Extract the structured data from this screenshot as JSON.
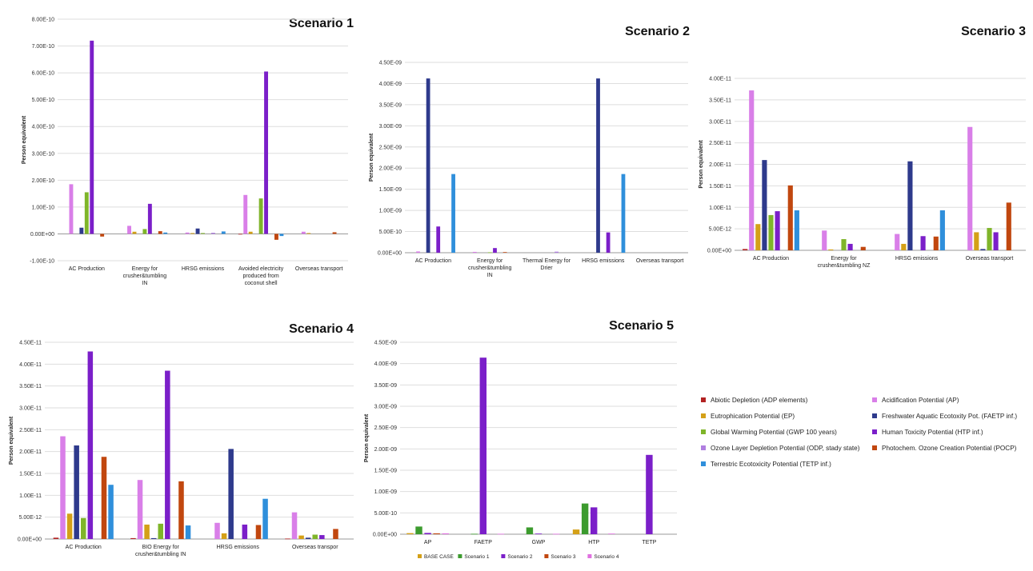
{
  "series_defs": [
    {
      "key": "adp",
      "name": "Abiotic Depletion (ADP elements)",
      "color": "#B22222"
    },
    {
      "key": "ap",
      "name": "Acidification Potential (AP)",
      "color": "#D97FE8"
    },
    {
      "key": "ep",
      "name": "Eutrophication Potential (EP)",
      "color": "#D4A017"
    },
    {
      "key": "faetp",
      "name": "Freshwater Aquatic Ecotoxity Pot. (FAETP inf.)",
      "color": "#2E3A8C"
    },
    {
      "key": "gwp",
      "name": "Global Warming Potential (GWP 100 years)",
      "color": "#7FB52A"
    },
    {
      "key": "htp",
      "name": "Human Toxicity Potential (HTP inf.)",
      "color": "#7B1FC9"
    },
    {
      "key": "odp",
      "name": "Ozone Layer Depletion Potential (ODP, stady state)",
      "color": "#B07FE0"
    },
    {
      "key": "pocp",
      "name": "Photochem. Ozone Creation Potential (POCP)",
      "color": "#C1470F"
    },
    {
      "key": "tetp",
      "name": "Terrestric Ecotoxicity Potential (TETP inf.)",
      "color": "#2F8FDB"
    }
  ],
  "chart_data": [
    {
      "type": "bar",
      "title": "Scenario 1",
      "ylabel": "Person equivalent",
      "ylim": [
        -1e-10,
        8e-10
      ],
      "yticks": [
        -1e-10,
        0,
        1e-10,
        2e-10,
        3e-10,
        4e-10,
        5e-10,
        6e-10,
        7e-10,
        8e-10
      ],
      "ytick_labels": [
        "-1.00E-10",
        "0.00E+00",
        "1.00E-10",
        "2.00E-10",
        "3.00E-10",
        "4.00E-10",
        "5.00E-10",
        "6.00E-10",
        "7.00E-10",
        "8.00E-10"
      ],
      "categories": [
        "AC Production",
        "Energy for crusher&tumbling IN",
        "HRSG emissions",
        "Avoided electricity produced from coconut shell",
        "Overseas transport"
      ],
      "category_lines": [
        [
          "AC Production"
        ],
        [
          "Energy for",
          "crusher&tumbling",
          "IN"
        ],
        [
          "HRSG emissions"
        ],
        [
          "Avoided electricity",
          "produced from",
          "coconut shell"
        ],
        [
          "Overseas transport"
        ]
      ],
      "series_keys": [
        "adp",
        "ap",
        "ep",
        "faetp",
        "gwp",
        "htp",
        "odp",
        "pocp",
        "tetp"
      ],
      "series": [
        {
          "key": "adp",
          "values": [
            0,
            0,
            0,
            -1e-12,
            0
          ]
        },
        {
          "key": "ap",
          "values": [
            1.85e-10,
            3e-11,
            5e-12,
            1.45e-10,
            8e-12
          ]
        },
        {
          "key": "ep",
          "values": [
            0,
            8e-12,
            3e-12,
            8e-12,
            3e-12
          ]
        },
        {
          "key": "faetp",
          "values": [
            2.3e-11,
            0,
            2e-11,
            0,
            0
          ]
        },
        {
          "key": "gwp",
          "values": [
            1.55e-10,
            1.8e-11,
            3e-12,
            1.32e-10,
            0
          ]
        },
        {
          "key": "htp",
          "values": [
            7.2e-10,
            1.12e-10,
            0,
            6.05e-10,
            0
          ]
        },
        {
          "key": "odp",
          "values": [
            0,
            0,
            4e-12,
            0,
            0
          ]
        },
        {
          "key": "pocp",
          "values": [
            -1e-11,
            1e-11,
            0,
            -2.2e-11,
            6e-12
          ]
        },
        {
          "key": "tetp",
          "values": [
            0,
            5e-12,
            9e-12,
            -8e-12,
            0
          ]
        }
      ],
      "legend": "none"
    },
    {
      "type": "bar",
      "title": "Scenario 2",
      "ylabel": "Person equivalent",
      "ylim": [
        0,
        4.5e-09
      ],
      "yticks": [
        0,
        5e-10,
        1e-09,
        1.5e-09,
        2e-09,
        2.5e-09,
        3e-09,
        3.5e-09,
        4e-09,
        4.5e-09
      ],
      "ytick_labels": [
        "0.00E+00",
        "5.00E-10",
        "1.00E-09",
        "1.50E-09",
        "2.00E-09",
        "2.50E-09",
        "3.00E-09",
        "3.50E-09",
        "4.00E-09",
        "4.50E-09"
      ],
      "categories": [
        "AC Production",
        "Energy for crusher&tumbling IN",
        "Thermal Energy for Drier",
        "HRSG emissions",
        "Overseas transport"
      ],
      "category_lines": [
        [
          "AC Production"
        ],
        [
          "Energy for",
          "crusher&tumbling",
          "IN"
        ],
        [
          "Thermal Energy for",
          "Drier"
        ],
        [
          "HRSG emissions"
        ],
        [
          "Overseas transport"
        ]
      ],
      "series_keys": [
        "adp",
        "ap",
        "ep",
        "faetp",
        "gwp",
        "htp",
        "odp",
        "pocp",
        "tetp"
      ],
      "series": [
        {
          "key": "adp",
          "values": [
            0,
            0,
            0,
            0,
            0
          ]
        },
        {
          "key": "ap",
          "values": [
            3e-11,
            2e-11,
            0,
            0,
            0
          ]
        },
        {
          "key": "ep",
          "values": [
            0,
            0,
            0,
            0,
            0
          ]
        },
        {
          "key": "faetp",
          "values": [
            4.12e-09,
            0,
            0,
            4.12e-09,
            0
          ]
        },
        {
          "key": "gwp",
          "values": [
            0,
            1e-11,
            0,
            0,
            0
          ]
        },
        {
          "key": "htp",
          "values": [
            6.2e-10,
            1.1e-10,
            0,
            4.8e-10,
            0
          ]
        },
        {
          "key": "odp",
          "values": [
            0,
            0,
            2.5e-11,
            0,
            0
          ]
        },
        {
          "key": "pocp",
          "values": [
            0,
            1.5e-11,
            0,
            0,
            0
          ]
        },
        {
          "key": "tetp",
          "values": [
            1.86e-09,
            0,
            0,
            1.86e-09,
            0
          ]
        }
      ],
      "legend": "none"
    },
    {
      "type": "bar",
      "title": "Scenario 3",
      "ylabel": "Person equivalent",
      "ylim": [
        0,
        4e-11
      ],
      "yticks": [
        0,
        5e-12,
        1e-11,
        1.5e-11,
        2e-11,
        2.5e-11,
        3e-11,
        3.5e-11,
        4e-11
      ],
      "ytick_labels": [
        "0.00E+00",
        "5.00E-12",
        "1.00E-11",
        "1.50E-11",
        "2.00E-11",
        "2.50E-11",
        "3.00E-11",
        "3.50E-11",
        "4.00E-11"
      ],
      "categories": [
        "AC Production",
        "Energy for crusher&tumbling NZ",
        "HRSG emissions",
        "Overseas transport"
      ],
      "category_lines": [
        [
          "AC Production"
        ],
        [
          "Energy for",
          "crusher&tumbling NZ"
        ],
        [
          "HRSG emissions"
        ],
        [
          "Overseas transport"
        ]
      ],
      "series_keys": [
        "adp",
        "ap",
        "ep",
        "faetp",
        "gwp",
        "htp",
        "odp",
        "pocp",
        "tetp"
      ],
      "series": [
        {
          "key": "adp",
          "values": [
            3e-13,
            0,
            0,
            0
          ]
        },
        {
          "key": "ap",
          "values": [
            3.72e-11,
            4.6e-12,
            3.8e-12,
            2.87e-11
          ]
        },
        {
          "key": "ep",
          "values": [
            6.1e-12,
            2e-13,
            1.5e-12,
            4.2e-12
          ]
        },
        {
          "key": "faetp",
          "values": [
            2.1e-11,
            0,
            2.07e-11,
            3e-13
          ]
        },
        {
          "key": "gwp",
          "values": [
            8.2e-12,
            2.6e-12,
            0,
            5.2e-12
          ]
        },
        {
          "key": "htp",
          "values": [
            9.1e-12,
            1.5e-12,
            3.3e-12,
            4.2e-12
          ]
        },
        {
          "key": "odp",
          "values": [
            0,
            0,
            0,
            0
          ]
        },
        {
          "key": "pocp",
          "values": [
            1.51e-11,
            8e-13,
            3.2e-12,
            1.11e-11
          ]
        },
        {
          "key": "tetp",
          "values": [
            9.3e-12,
            0,
            9.3e-12,
            0
          ]
        }
      ],
      "legend": "none"
    },
    {
      "type": "bar",
      "title": "Scenario 4",
      "ylabel": "Person equivalent",
      "ylim": [
        0,
        4.5e-11
      ],
      "yticks": [
        0,
        5e-12,
        1e-11,
        1.5e-11,
        2e-11,
        2.5e-11,
        3e-11,
        3.5e-11,
        4e-11,
        4.5e-11
      ],
      "ytick_labels": [
        "0.00E+00",
        "5.00E-12",
        "1.00E-11",
        "1.50E-11",
        "2.00E-11",
        "2.50E-11",
        "3.00E-11",
        "3.50E-11",
        "4.00E-11",
        "4.50E-11"
      ],
      "categories": [
        "AC Production",
        "BIO Energy for crusher&tumbling IN",
        "HRSG emissions",
        "Overseas transpor"
      ],
      "category_lines": [
        [
          "AC Production"
        ],
        [
          "BIO Energy for",
          "crusher&tumbling IN"
        ],
        [
          "HRSG emissions"
        ],
        [
          "Overseas transpor"
        ]
      ],
      "series_keys": [
        "adp",
        "ap",
        "ep",
        "faetp",
        "gwp",
        "htp",
        "odp",
        "pocp",
        "tetp"
      ],
      "series": [
        {
          "key": "adp",
          "values": [
            3e-13,
            2e-13,
            0,
            1e-13
          ]
        },
        {
          "key": "ap",
          "values": [
            2.35e-11,
            1.35e-11,
            3.7e-12,
            6.1e-12
          ]
        },
        {
          "key": "ep",
          "values": [
            5.8e-12,
            3.3e-12,
            1.3e-12,
            8e-13
          ]
        },
        {
          "key": "faetp",
          "values": [
            2.14e-11,
            2e-13,
            2.06e-11,
            3e-13
          ]
        },
        {
          "key": "gwp",
          "values": [
            4.8e-12,
            3.5e-12,
            0,
            1e-12
          ]
        },
        {
          "key": "htp",
          "values": [
            4.29e-11,
            3.85e-11,
            3.3e-12,
            9e-13
          ]
        },
        {
          "key": "odp",
          "values": [
            0,
            0,
            0,
            0
          ]
        },
        {
          "key": "pocp",
          "values": [
            1.88e-11,
            1.32e-11,
            3.2e-12,
            2.3e-12
          ]
        },
        {
          "key": "tetp",
          "values": [
            1.24e-11,
            3.1e-12,
            9.2e-12,
            0
          ]
        }
      ],
      "legend": "none"
    },
    {
      "type": "bar",
      "title": "Scenario 5",
      "ylabel": "Person equivalent",
      "ylim": [
        0,
        4.5e-09
      ],
      "yticks": [
        0,
        5e-10,
        1e-09,
        1.5e-09,
        2e-09,
        2.5e-09,
        3e-09,
        3.5e-09,
        4e-09,
        4.5e-09
      ],
      "ytick_labels": [
        "0.00E+00",
        "5.00E-10",
        "1.00E-09",
        "1.50E-09",
        "2.00E-09",
        "2.50E-09",
        "3.00E-09",
        "3.50E-09",
        "4.00E-09",
        "4.50E-09"
      ],
      "categories": [
        "AP",
        "FAETP",
        "GWP",
        "HTP",
        "TETP"
      ],
      "category_lines": [
        [
          "AP"
        ],
        [
          "FAETP"
        ],
        [
          "GWP"
        ],
        [
          "HTP"
        ],
        [
          "TETP"
        ]
      ],
      "series_keys": [
        "base",
        "s1",
        "s2",
        "s3",
        "s4"
      ],
      "series_meta": [
        {
          "key": "base",
          "name": "BASE CASE",
          "color": "#D4A017"
        },
        {
          "key": "s1",
          "name": "Scenario 1",
          "color": "#3C9B2E"
        },
        {
          "key": "s2",
          "name": "Scenario 2",
          "color": "#7B1FC9"
        },
        {
          "key": "s3",
          "name": "Scenario 3",
          "color": "#C1470F"
        },
        {
          "key": "s4",
          "name": "Scenario 4",
          "color": "#E070E0"
        }
      ],
      "series": [
        {
          "key": "base",
          "values": [
            2.5e-11,
            0,
            0,
            1.1e-10,
            0
          ]
        },
        {
          "key": "s1",
          "values": [
            1.8e-10,
            1e-11,
            1.6e-10,
            7.2e-10,
            0
          ]
        },
        {
          "key": "s2",
          "values": [
            3e-11,
            4.14e-09,
            1.5e-11,
            6.3e-10,
            1.86e-09
          ]
        },
        {
          "key": "s3",
          "values": [
            2e-11,
            0,
            0,
            0,
            0
          ]
        },
        {
          "key": "s4",
          "values": [
            2e-11,
            1e-11,
            1e-11,
            1.5e-11,
            0
          ]
        }
      ],
      "legend": "bottom"
    }
  ]
}
